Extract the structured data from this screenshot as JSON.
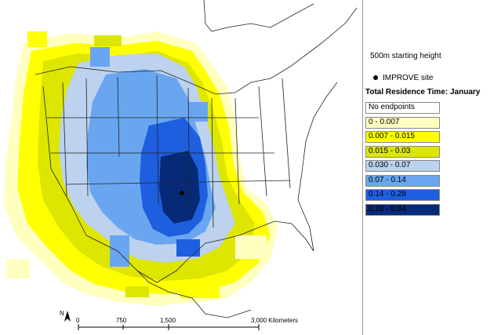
{
  "map": {
    "site_marker": "IMPROVE site",
    "scale_bar": {
      "ticks": [
        "0",
        "750",
        "1,500",
        "3,000 Kilometers"
      ],
      "north_label": "N"
    }
  },
  "legend": {
    "subtitle": "500m starting height",
    "site_label": "IMPROVE site",
    "title": "Total Residence Time: January",
    "classes": [
      {
        "label": "No endpoints",
        "color": "#ffffff"
      },
      {
        "label": "0 - 0.007",
        "color": "#ffffc0"
      },
      {
        "label": "0.007 - 0.015",
        "color": "#ffff00"
      },
      {
        "label": "0.015 - 0.03",
        "color": "#dde600"
      },
      {
        "label": "0.030 - 0.07",
        "color": "#bcd2ee"
      },
      {
        "label": "0.07 - 0.14",
        "color": "#6aa6f0"
      },
      {
        "label": "0.14 - 0.28",
        "color": "#1e5fe0"
      },
      {
        "label": "0.28 - 0.84",
        "color": "#062a78"
      }
    ]
  }
}
